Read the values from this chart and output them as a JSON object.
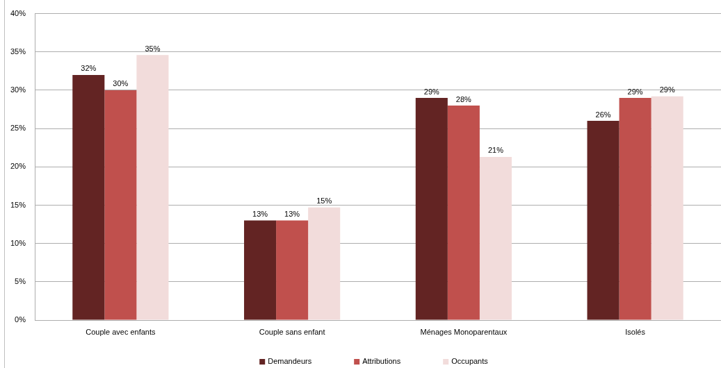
{
  "chart_data": {
    "type": "bar",
    "categories": [
      "Couple avec enfants",
      "Couple sans enfant",
      "Ménages Monoparentaux",
      "Isolés"
    ],
    "series": [
      {
        "name": "Demandeurs",
        "color": "#632423",
        "values": [
          32,
          13,
          29,
          26
        ],
        "value_labels": [
          "32%",
          "13%",
          "29%",
          "26%"
        ]
      },
      {
        "name": "Attributions",
        "color": "#c0504d",
        "values": [
          30,
          13,
          28,
          29
        ],
        "value_labels": [
          "30%",
          "13%",
          "28%",
          "29%"
        ]
      },
      {
        "name": "Occupants",
        "color": "#f2dcdb",
        "values": [
          34.6,
          14.7,
          21.3,
          29.2
        ],
        "value_labels": [
          "35%",
          "15%",
          "21%",
          "29%"
        ]
      }
    ],
    "ylim": [
      0,
      40
    ],
    "yticks": [
      {
        "value": 0,
        "label": "0%"
      },
      {
        "value": 5,
        "label": "5%"
      },
      {
        "value": 10,
        "label": "10%"
      },
      {
        "value": 15,
        "label": "15%"
      },
      {
        "value": 20,
        "label": "20%"
      },
      {
        "value": 25,
        "label": "25%"
      },
      {
        "value": 30,
        "label": "30%"
      },
      {
        "value": 35,
        "label": "35%"
      },
      {
        "value": 40,
        "label": "40%"
      }
    ],
    "grid": "y",
    "legend": "bottom"
  }
}
